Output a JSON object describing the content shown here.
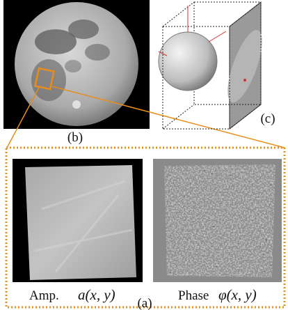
{
  "panel_b": {
    "label": "(b)"
  },
  "panel_c": {
    "label": "(c)"
  },
  "panel_a": {
    "label": "(a)",
    "amp_label": "Amp.",
    "amp_symbol": "a(x, y)",
    "phase_label": "Phase",
    "phase_symbol": "φ(x, y)"
  }
}
